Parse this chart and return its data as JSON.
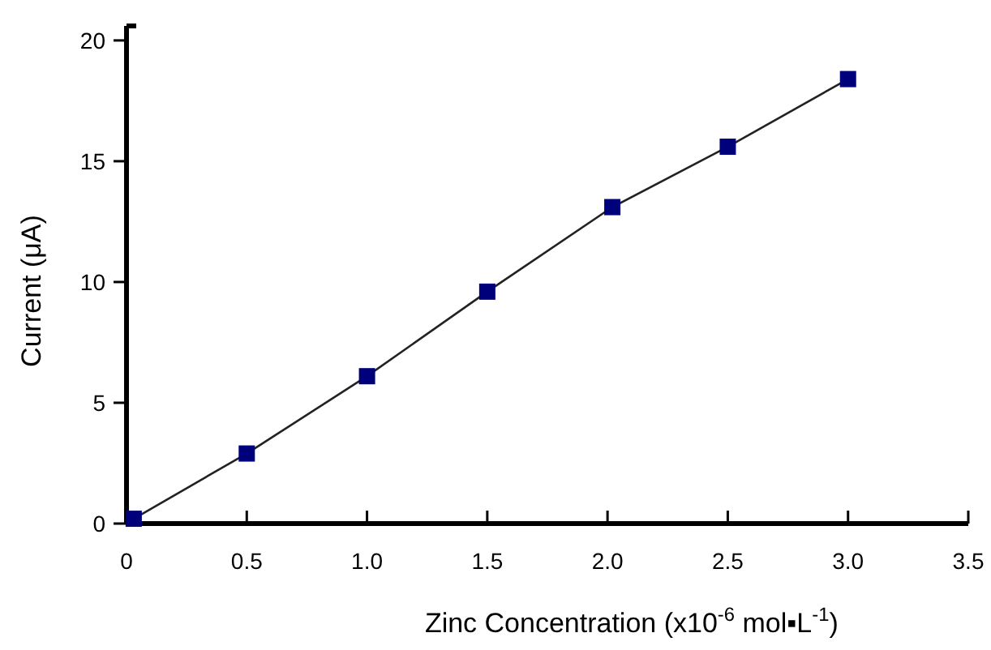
{
  "chart_data": {
    "type": "line",
    "xlabel": "Zinc Concentration (x10$^{-6}$ mol▪L$^{-1}$)",
    "ylabel": "Current (μA)",
    "x": [
      0.03,
      0.5,
      1.0,
      1.5,
      2.02,
      2.5,
      3.0
    ],
    "series": [
      {
        "color": "#00007a",
        "values": [
          0.2,
          2.9,
          6.1,
          9.6,
          13.1,
          15.6,
          18.4
        ]
      }
    ],
    "xlim": [
      0,
      3.5
    ],
    "xticks": [
      0,
      0.5,
      {
        "value": 1,
        "label": "1.0"
      },
      1.5,
      {
        "value": 2,
        "label": "2.0"
      },
      2.5,
      {
        "value": 3,
        "label": "3.0"
      },
      3.5
    ],
    "ylim": [
      0,
      20.6
    ],
    "yticks": [
      0,
      5,
      10,
      15,
      20
    ],
    "marker": "square",
    "line_style": "solid"
  }
}
